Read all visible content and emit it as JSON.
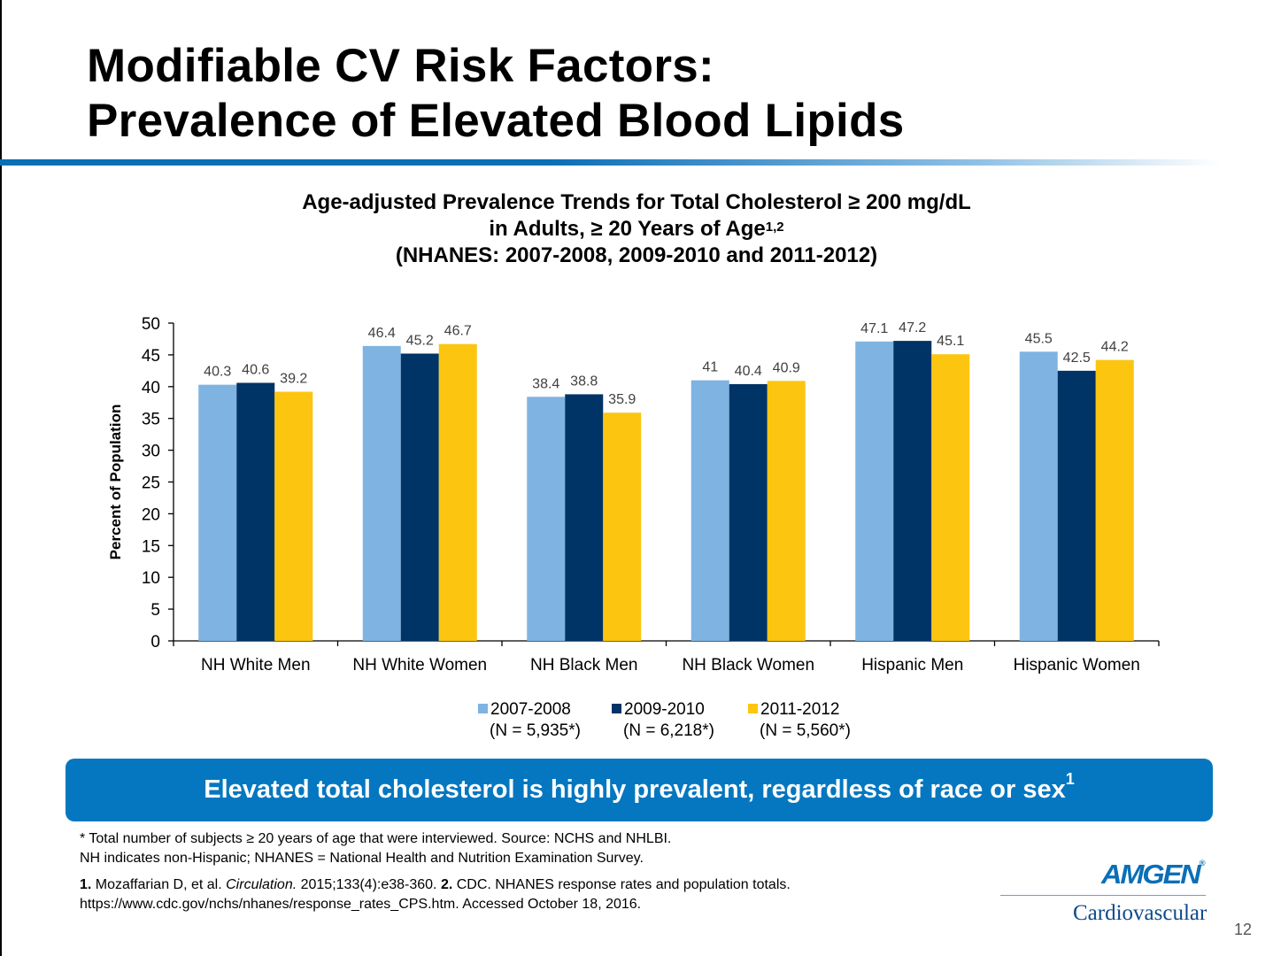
{
  "slide": {
    "title_line1": "Modifiable CV Risk Factors:",
    "title_line2": "Prevalence of Elevated Blood Lipids",
    "page_number": "12"
  },
  "chart_title": {
    "line1": "Age-adjusted Prevalence Trends for Total Cholesterol ≥ 200 mg/dL",
    "line2": "in Adults, ≥ 20 Years of Age",
    "line2_sup": "1,2",
    "line3": "(NHANES: 2007-2008, 2009-2010 and 2011-2012)"
  },
  "chart_data": {
    "type": "bar",
    "categories": [
      "NH White Men",
      "NH White Women",
      "NH Black Men",
      "NH Black Women",
      "Hispanic Men",
      "Hispanic Women"
    ],
    "series": [
      {
        "name": "2007-2008",
        "n_label": "(N = 5,935*)",
        "color": "#7fb3e1",
        "values": [
          40.3,
          46.4,
          38.4,
          41,
          47.1,
          45.5
        ]
      },
      {
        "name": "2009-2010",
        "n_label": "(N = 6,218*)",
        "color": "#003366",
        "values": [
          40.6,
          45.2,
          38.8,
          40.4,
          47.2,
          42.5
        ]
      },
      {
        "name": "2011-2012",
        "n_label": "(N = 5,560*)",
        "color": "#fcc50f",
        "values": [
          39.2,
          46.7,
          35.9,
          40.9,
          45.1,
          44.2
        ]
      }
    ],
    "ylabel": "Percent of Population",
    "ylim": [
      0,
      50
    ],
    "yticks": [
      0,
      5,
      10,
      15,
      20,
      25,
      30,
      35,
      40,
      45,
      50
    ],
    "grid": false,
    "legend_position": "bottom"
  },
  "callout": {
    "text": "Elevated total cholesterol is highly prevalent, regardless of race or sex",
    "sup": "1"
  },
  "footnotes": {
    "line1": "* Total number of subjects ≥ 20 years of age that were interviewed. Source: NCHS and NHLBI.",
    "line2": "NH indicates non-Hispanic; NHANES = National Health and Nutrition Examination Survey.",
    "ref1_num": "1.",
    "ref1_pre": " Mozaffarian D, et al. ",
    "ref1_journal": "Circulation.",
    "ref1_post": " 2015;133(4):e38-360. ",
    "ref2_num": "2.",
    "ref2_text": " CDC. NHANES response rates and population totals.",
    "line4": "https://www.cdc.gov/nchs/nhanes/response_rates_CPS.htm. Accessed October 18, 2016."
  },
  "branding": {
    "logo": "AMGEN",
    "logo_mark": "®",
    "division": "Cardiovascular"
  }
}
